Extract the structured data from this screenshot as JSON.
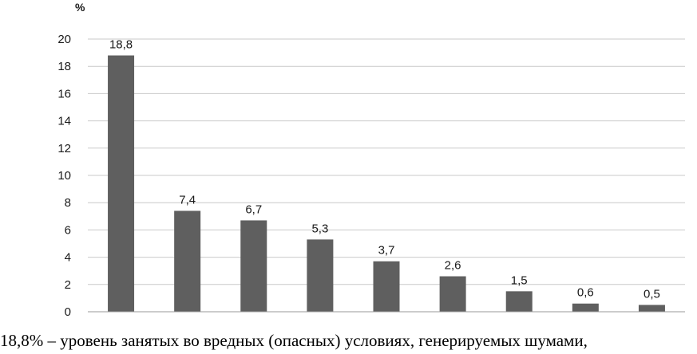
{
  "chart_data": {
    "type": "bar",
    "ylabel": "%",
    "ylim": [
      0,
      20
    ],
    "yticks": [
      0,
      2,
      4,
      6,
      8,
      10,
      12,
      14,
      16,
      18,
      20
    ],
    "values": [
      18.8,
      7.4,
      6.7,
      5.3,
      3.7,
      2.6,
      1.5,
      0.6,
      0.5
    ],
    "data_labels": [
      "18,8",
      "7,4",
      "6,7",
      "5,3",
      "3,7",
      "2,6",
      "1,5",
      "0,6",
      "0,5"
    ],
    "grid": true,
    "bar_color": "#5f5f5f",
    "grid_color": "#c9c9c9"
  },
  "caption": "18,8% – уровень занятых во вредных (опасных) условиях, генерируемых шумами,"
}
